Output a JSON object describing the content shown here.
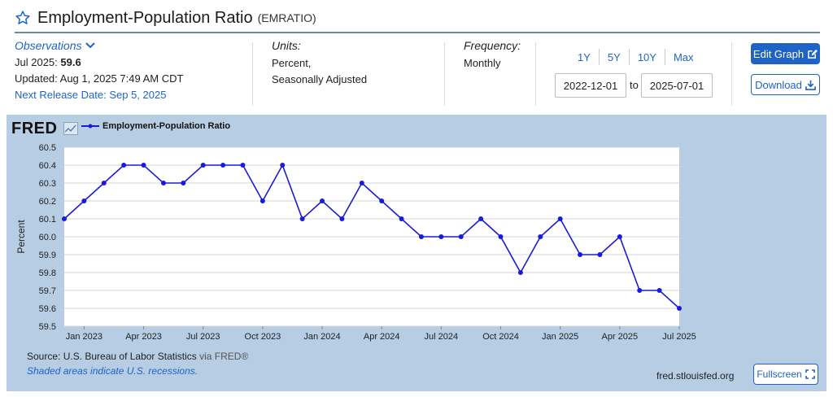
{
  "header": {
    "title": "Employment-Population Ratio",
    "code": "(EMRATIO)"
  },
  "observations": {
    "label": "Observations",
    "latest_label": "Jul 2025:",
    "latest_value": "59.6",
    "updated": "Updated: Aug 1, 2025 7:49 AM CDT",
    "next_release": "Next Release Date: Sep 5, 2025"
  },
  "units": {
    "label": "Units:",
    "line1": "Percent,",
    "line2": "Seasonally Adjusted"
  },
  "frequency": {
    "label": "Frequency:",
    "value": "Monthly"
  },
  "ranges": [
    "1Y",
    "5Y",
    "10Y",
    "Max"
  ],
  "dates": {
    "start": "2022-12-01",
    "to": "to",
    "end": "2025-07-01"
  },
  "buttons": {
    "edit": "Edit Graph",
    "download": "Download",
    "fullscreen": "Fullscreen"
  },
  "fred": {
    "logo": "FRED"
  },
  "footer": {
    "source": "Source: U.S. Bureau of Labor Statistics",
    "via": "via FRED®",
    "shaded": "Shaded areas indicate U.S. recessions.",
    "site": "fred.stlouisfed.org"
  },
  "colors": {
    "accent": "#1f63c6",
    "line": "#1a1adb",
    "panel": "#b7cde3"
  },
  "chart_data": {
    "type": "line",
    "title": "",
    "ylabel": "Percent",
    "ylim": [
      59.5,
      60.5
    ],
    "yticks": [
      "60.5",
      "60.4",
      "60.3",
      "60.2",
      "60.1",
      "60.0",
      "59.9",
      "59.8",
      "59.7",
      "59.6",
      "59.5"
    ],
    "xtick_labels": [
      {
        "label": "Jan 2023",
        "index": 1
      },
      {
        "label": "Apr 2023",
        "index": 4
      },
      {
        "label": "Jul 2023",
        "index": 7
      },
      {
        "label": "Oct 2023",
        "index": 10
      },
      {
        "label": "Jan 2024",
        "index": 13
      },
      {
        "label": "Apr 2024",
        "index": 16
      },
      {
        "label": "Jul 2024",
        "index": 19
      },
      {
        "label": "Oct 2024",
        "index": 22
      },
      {
        "label": "Jan 2025",
        "index": 25
      },
      {
        "label": "Apr 2025",
        "index": 28
      },
      {
        "label": "Jul 2025",
        "index": 31
      }
    ],
    "grid": true,
    "legend": "top-left",
    "series": [
      {
        "name": "Employment-Population Ratio",
        "x": [
          "2022-12",
          "2023-01",
          "2023-02",
          "2023-03",
          "2023-04",
          "2023-05",
          "2023-06",
          "2023-07",
          "2023-08",
          "2023-09",
          "2023-10",
          "2023-11",
          "2023-12",
          "2024-01",
          "2024-02",
          "2024-03",
          "2024-04",
          "2024-05",
          "2024-06",
          "2024-07",
          "2024-08",
          "2024-09",
          "2024-10",
          "2024-11",
          "2024-12",
          "2025-01",
          "2025-02",
          "2025-03",
          "2025-04",
          "2025-05",
          "2025-06",
          "2025-07"
        ],
        "values": [
          60.1,
          60.2,
          60.3,
          60.4,
          60.4,
          60.3,
          60.3,
          60.4,
          60.4,
          60.4,
          60.2,
          60.4,
          60.1,
          60.2,
          60.1,
          60.3,
          60.2,
          60.1,
          60.0,
          60.0,
          60.0,
          60.1,
          60.0,
          59.8,
          60.0,
          60.1,
          59.9,
          59.9,
          60.0,
          59.7,
          59.7,
          59.6
        ]
      }
    ]
  }
}
